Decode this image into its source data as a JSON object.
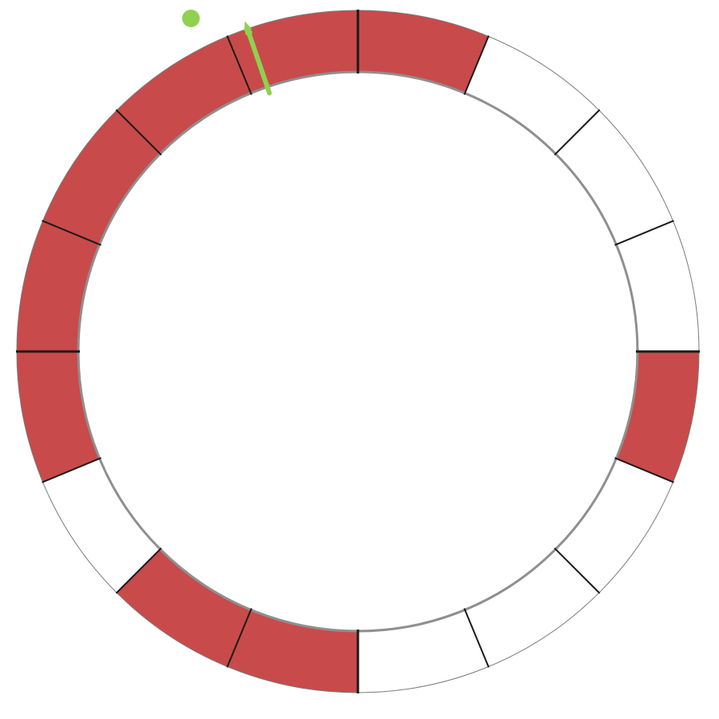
{
  "ring": {
    "segment_count": 16,
    "segments": [
      {
        "index": 0,
        "filled": true
      },
      {
        "index": 1,
        "filled": false
      },
      {
        "index": 2,
        "filled": false
      },
      {
        "index": 3,
        "filled": false
      },
      {
        "index": 4,
        "filled": true
      },
      {
        "index": 5,
        "filled": false
      },
      {
        "index": 6,
        "filled": false
      },
      {
        "index": 7,
        "filled": false
      },
      {
        "index": 8,
        "filled": true
      },
      {
        "index": 9,
        "filled": true
      },
      {
        "index": 10,
        "filled": false
      },
      {
        "index": 11,
        "filled": true
      },
      {
        "index": 12,
        "filled": true
      },
      {
        "index": 13,
        "filled": true
      },
      {
        "index": 14,
        "filled": true
      },
      {
        "index": 15,
        "filled": true
      }
    ],
    "colors": {
      "filled": "#c94a4a",
      "empty": "#ffffff",
      "divider": "#1a1a1a",
      "pointer": "#8fd14f"
    }
  },
  "pointer": {
    "position_fraction": 0.9475,
    "icon": "green-pointer-needle-with-dot"
  }
}
